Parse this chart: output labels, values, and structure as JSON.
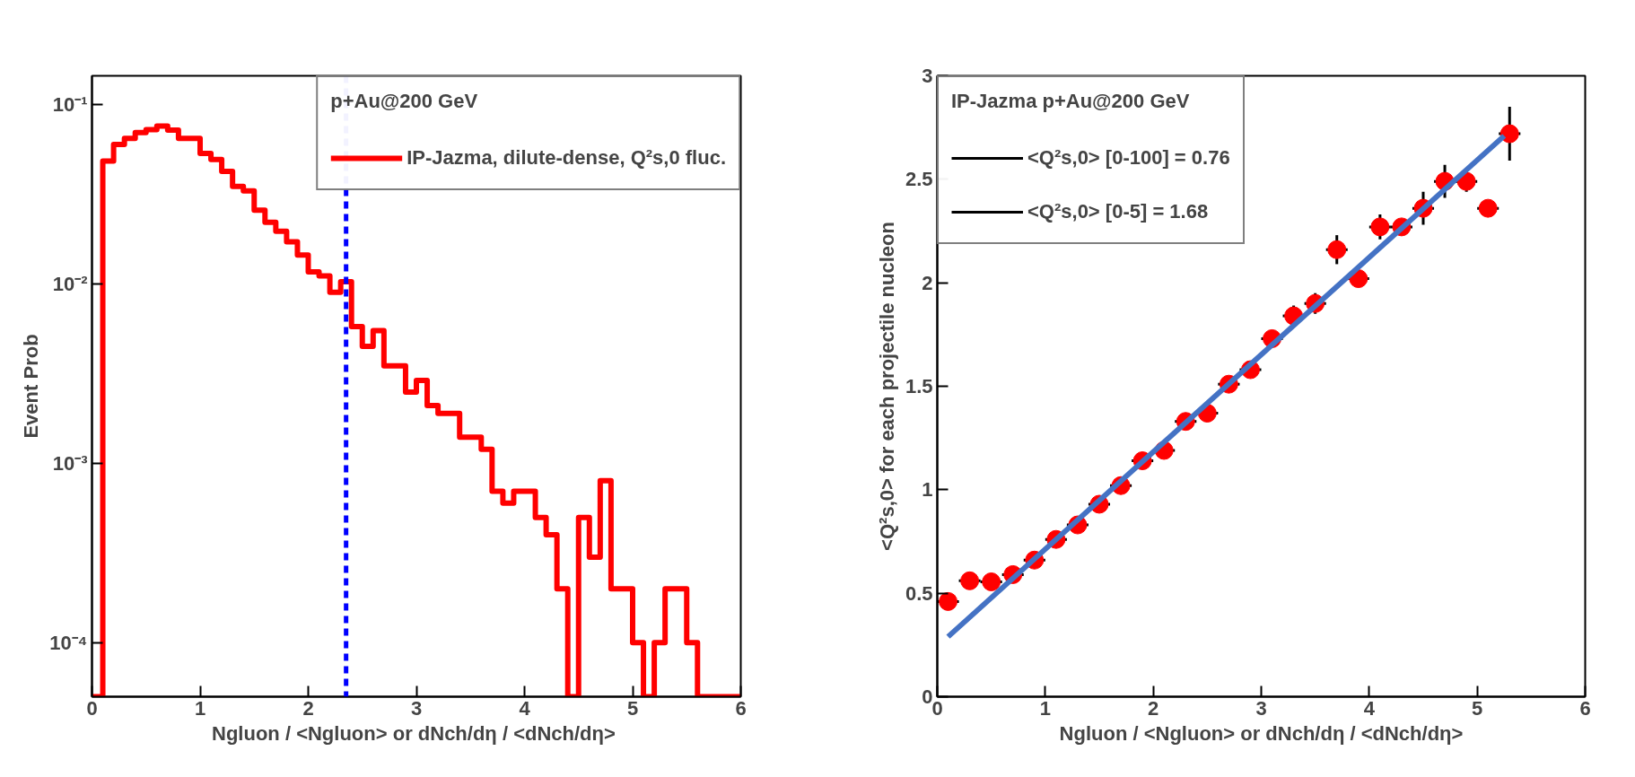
{
  "chart_data": [
    {
      "type": "histogram",
      "ylabel": "Event Prob",
      "xlabel": "Ngluon / <Ngluon>  or dNch/dη / <dNch/dη>",
      "legend_title": "p+Au@200 GeV",
      "legend": "top right",
      "log": "y",
      "grid": false,
      "xlim": [
        0,
        6
      ],
      "xticks": [
        0,
        1,
        2,
        3,
        4,
        5,
        6
      ],
      "ylim": [
        5e-05,
        0.145
      ],
      "yticks": [
        {
          "value": 0.0001,
          "label": "10⁻⁴"
        },
        {
          "value": 0.001,
          "label": "10⁻³"
        },
        {
          "value": 0.01,
          "label": "10⁻²"
        },
        {
          "value": 0.1,
          "label": "10⁻¹"
        }
      ],
      "bins": [
        0,
        0.1,
        0.2,
        0.3,
        0.4,
        0.5,
        0.6,
        0.7,
        0.8,
        0.9,
        1,
        1.1,
        1.2,
        1.3,
        1.4,
        1.5,
        1.6,
        1.7,
        1.8,
        1.9,
        2,
        2.1,
        2.2,
        2.3,
        2.4,
        2.5,
        2.6,
        2.7,
        2.8,
        2.9,
        3,
        3.1,
        3.2,
        3.3,
        3.4,
        3.5,
        3.6,
        3.7,
        3.8,
        3.9,
        4,
        4.1,
        4.2,
        4.3,
        4.4,
        4.5,
        4.6,
        4.7,
        4.8,
        4.9,
        5,
        5.1,
        5.2,
        5.3,
        5.4,
        5.5,
        5.6,
        5.7,
        5.8,
        5.9,
        6
      ],
      "series": [
        {
          "name": "IP-Jazma, dilute-dense, Q²s,0 fluc.",
          "color": "#ff0000",
          "values": [
            null,
            0.0486,
            0.06,
            0.0649,
            0.07,
            0.0727,
            0.076,
            0.0722,
            0.0649,
            0.0649,
            0.0535,
            0.0495,
            0.0425,
            0.0351,
            0.0331,
            0.0258,
            0.0221,
            0.0197,
            0.0172,
            0.0145,
            0.0117,
            0.0111,
            0.009,
            0.0103,
            0.0058,
            0.0045,
            0.0055,
            0.0035,
            0.0035,
            0.0025,
            0.0029,
            0.0021,
            0.0019,
            0.0019,
            0.0014,
            0.0014,
            0.0012,
            0.0007,
            0.0006,
            0.0007,
            0.0007,
            0.0005,
            0.0004,
            0.0002,
            null,
            0.0005,
            0.0003,
            0.0008,
            0.0002,
            0.0002,
            0.0001,
            null,
            0.0001,
            0.0002,
            0.0002,
            0.0001,
            null,
            null,
            null,
            null
          ]
        }
      ],
      "ref_lines": [
        {
          "axis": "x",
          "value": 2.35,
          "color": "#0000ff",
          "line_style": "dashed"
        }
      ]
    },
    {
      "type": "scatter",
      "ylabel": "<Q²s,0> for each projectile nucleon",
      "xlabel": "Ngluon / <Ngluon> or dNch/dη / <dNch/dη>",
      "legend_title": "IP-Jazma p+Au@200 GeV",
      "legend": "top left",
      "grid": false,
      "annotations": [
        "<Q²s,0> [0-100] = 0.76",
        "<Q²s,0> [0-5] = 1.68"
      ],
      "xlim": [
        0,
        6
      ],
      "xticks": [
        0,
        1,
        2,
        3,
        4,
        5,
        6
      ],
      "ylim": [
        0,
        3
      ],
      "yticks": [
        0,
        0.5,
        1,
        1.5,
        2,
        2.5,
        3
      ],
      "x": [
        0.1,
        0.3,
        0.5,
        0.7,
        0.9,
        1.1,
        1.3,
        1.5,
        1.7,
        1.9,
        2.1,
        2.3,
        2.5,
        2.7,
        2.9,
        3.1,
        3.3,
        3.5,
        3.7,
        3.9,
        4.1,
        4.3,
        4.5,
        4.7,
        4.9,
        5.1,
        5.3
      ],
      "series": [
        {
          "type": "scatter",
          "marker": "circle",
          "color": "#ff0000",
          "values": [
            0.46,
            0.56,
            0.555,
            0.59,
            0.66,
            0.76,
            0.83,
            0.93,
            1.02,
            1.14,
            1.19,
            1.33,
            1.37,
            1.51,
            1.58,
            1.73,
            1.84,
            1.9,
            2.16,
            2.02,
            2.27,
            2.27,
            2.36,
            2.49,
            2.49,
            2.36,
            2.72
          ],
          "errors": [
            null,
            null,
            null,
            null,
            null,
            null,
            null,
            null,
            null,
            null,
            null,
            null,
            null,
            null,
            null,
            null,
            0.05,
            0.05,
            0.07,
            null,
            0.06,
            null,
            0.08,
            0.08,
            0.05,
            null,
            0.13
          ],
          "xerrors": [
            0.1,
            0.1,
            0.1,
            0.1,
            0.1,
            0.1,
            0.1,
            0.1,
            0.1,
            0.1,
            0.1,
            0.1,
            0.1,
            0.1,
            0.1,
            0.1,
            0.1,
            0.1,
            0.1,
            0.1,
            0.1,
            0.1,
            0.1,
            0.1,
            0.1,
            0.1,
            0.1
          ]
        },
        {
          "type": "line",
          "color": "#4472c4",
          "x": [
            0.1,
            5.25
          ],
          "values": [
            0.29,
            2.71
          ]
        }
      ]
    }
  ]
}
